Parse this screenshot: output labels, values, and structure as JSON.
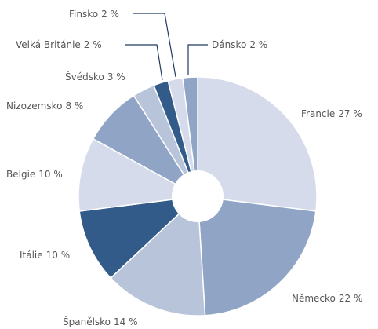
{
  "chart_data": {
    "type": "pie",
    "categories": [
      "Francie",
      "Německo",
      "Španělsko",
      "Itálie",
      "Belgie",
      "Nizozemsko",
      "Švédsko",
      "Velká Británie",
      "Finsko",
      "Dánsko"
    ],
    "values": [
      27,
      22,
      14,
      10,
      10,
      8,
      3,
      2,
      2,
      2
    ],
    "value_labels": [
      "27 %",
      "22 %",
      "14 %",
      "10 %",
      "10 %",
      "8 %",
      "3 %",
      "2 %",
      "2 %",
      "2 %"
    ],
    "colors": [
      "#d5dbea",
      "#90a4c5",
      "#b8c4d9",
      "#325b8a",
      "#d5dbea",
      "#90a4c5",
      "#b8c4d9",
      "#325b8a",
      "#d5dbea",
      "#90a4c5"
    ]
  }
}
